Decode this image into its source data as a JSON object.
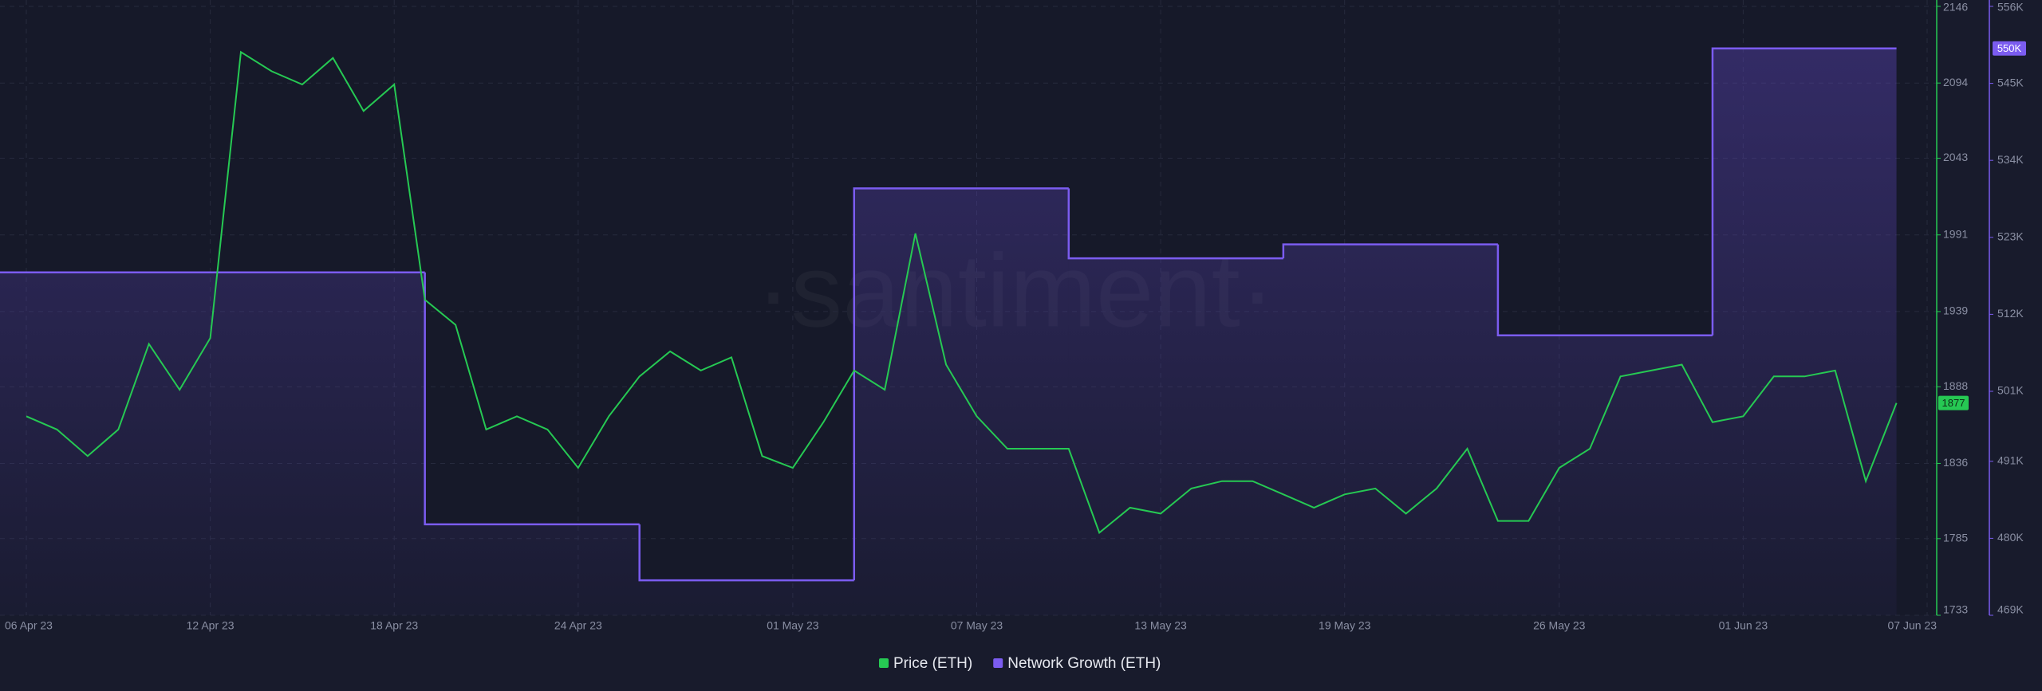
{
  "chart_data": {
    "type": "line-step",
    "watermark": "·santiment·",
    "x": [
      "2023-04-06",
      "2023-04-07",
      "2023-04-08",
      "2023-04-09",
      "2023-04-10",
      "2023-04-11",
      "2023-04-12",
      "2023-04-13",
      "2023-04-14",
      "2023-04-15",
      "2023-04-16",
      "2023-04-17",
      "2023-04-18",
      "2023-04-19",
      "2023-04-20",
      "2023-04-21",
      "2023-04-22",
      "2023-04-23",
      "2023-04-24",
      "2023-04-25",
      "2023-04-26",
      "2023-04-27",
      "2023-04-28",
      "2023-04-29",
      "2023-04-30",
      "2023-05-01",
      "2023-05-02",
      "2023-05-03",
      "2023-05-04",
      "2023-05-05",
      "2023-05-06",
      "2023-05-07",
      "2023-05-08",
      "2023-05-09",
      "2023-05-10",
      "2023-05-11",
      "2023-05-12",
      "2023-05-13",
      "2023-05-14",
      "2023-05-15",
      "2023-05-16",
      "2023-05-17",
      "2023-05-18",
      "2023-05-19",
      "2023-05-20",
      "2023-05-21",
      "2023-05-22",
      "2023-05-23",
      "2023-05-24",
      "2023-05-25",
      "2023-05-26",
      "2023-05-27",
      "2023-05-28",
      "2023-05-29",
      "2023-05-30",
      "2023-05-31",
      "2023-06-01",
      "2023-06-02",
      "2023-06-03",
      "2023-06-04",
      "2023-06-05",
      "2023-06-06"
    ],
    "series": [
      {
        "name": "Price (ETH)",
        "color": "#26c953",
        "axis": "y",
        "values": [
          1868,
          1859,
          1841,
          1859,
          1917,
          1886,
          1921,
          2115,
          2102,
          2093,
          2111,
          2075,
          2093,
          1947,
          1930,
          1859,
          1868,
          1859,
          1833,
          1868,
          1895,
          1912,
          1899,
          1908,
          1841,
          1833,
          1864,
          1899,
          1886,
          1992,
          1903,
          1868,
          1846,
          1846,
          1846,
          1789,
          1806,
          1802,
          1819,
          1824,
          1824,
          1815,
          1806,
          1815,
          1819,
          1802,
          1819,
          1846,
          1797,
          1797,
          1833,
          1846,
          1895,
          1899,
          1903,
          1864,
          1868,
          1895,
          1895,
          1899,
          1824,
          1877
        ]
      },
      {
        "name": "Network Growth (ETH)",
        "color": "#7b5cf0",
        "axis": "y2",
        "x": [
          "2023-04-06",
          "2023-04-19",
          "2023-04-26",
          "2023-05-03",
          "2023-05-10",
          "2023-05-17",
          "2023-05-24",
          "2023-05-31"
        ],
        "values": [
          518000,
          482000,
          474000,
          530000,
          520000,
          522000,
          509000,
          550000
        ],
        "value_labels": [
          null,
          null,
          null,
          null,
          null,
          null,
          null,
          "550K"
        ]
      }
    ],
    "xlim": [
      "2023-04-06",
      "2023-06-07"
    ],
    "xticks": [
      {
        "value": "2023-04-06",
        "label": "06 Apr 23"
      },
      {
        "value": "2023-04-12",
        "label": "12 Apr 23"
      },
      {
        "value": "2023-04-18",
        "label": "18 Apr 23"
      },
      {
        "value": "2023-04-24",
        "label": "24 Apr 23"
      },
      {
        "value": "2023-05-01",
        "label": "01 May 23"
      },
      {
        "value": "2023-05-07",
        "label": "07 May 23"
      },
      {
        "value": "2023-05-13",
        "label": "13 May 23"
      },
      {
        "value": "2023-05-19",
        "label": "19 May 23"
      },
      {
        "value": "2023-05-26",
        "label": "26 May 23"
      },
      {
        "value": "2023-06-01",
        "label": "01 Jun 23"
      },
      {
        "value": "2023-06-07",
        "label": "07 Jun 23"
      }
    ],
    "ylim": [
      1733,
      2146
    ],
    "yticks": [
      1733,
      1785,
      1836,
      1888,
      1939,
      1991,
      2043,
      2094,
      2146
    ],
    "y2lim": [
      469000,
      556000
    ],
    "y2ticks": [
      {
        "value": 469000,
        "label": "469K"
      },
      {
        "value": 480000,
        "label": "480K"
      },
      {
        "value": 491000,
        "label": "491K"
      },
      {
        "value": 501000,
        "label": "501K"
      },
      {
        "value": 512000,
        "label": "512K"
      },
      {
        "value": 523000,
        "label": "523K"
      },
      {
        "value": 534000,
        "label": "534K"
      },
      {
        "value": 545000,
        "label": "545K"
      },
      {
        "value": 556000,
        "label": "556K"
      }
    ],
    "grid": true
  }
}
